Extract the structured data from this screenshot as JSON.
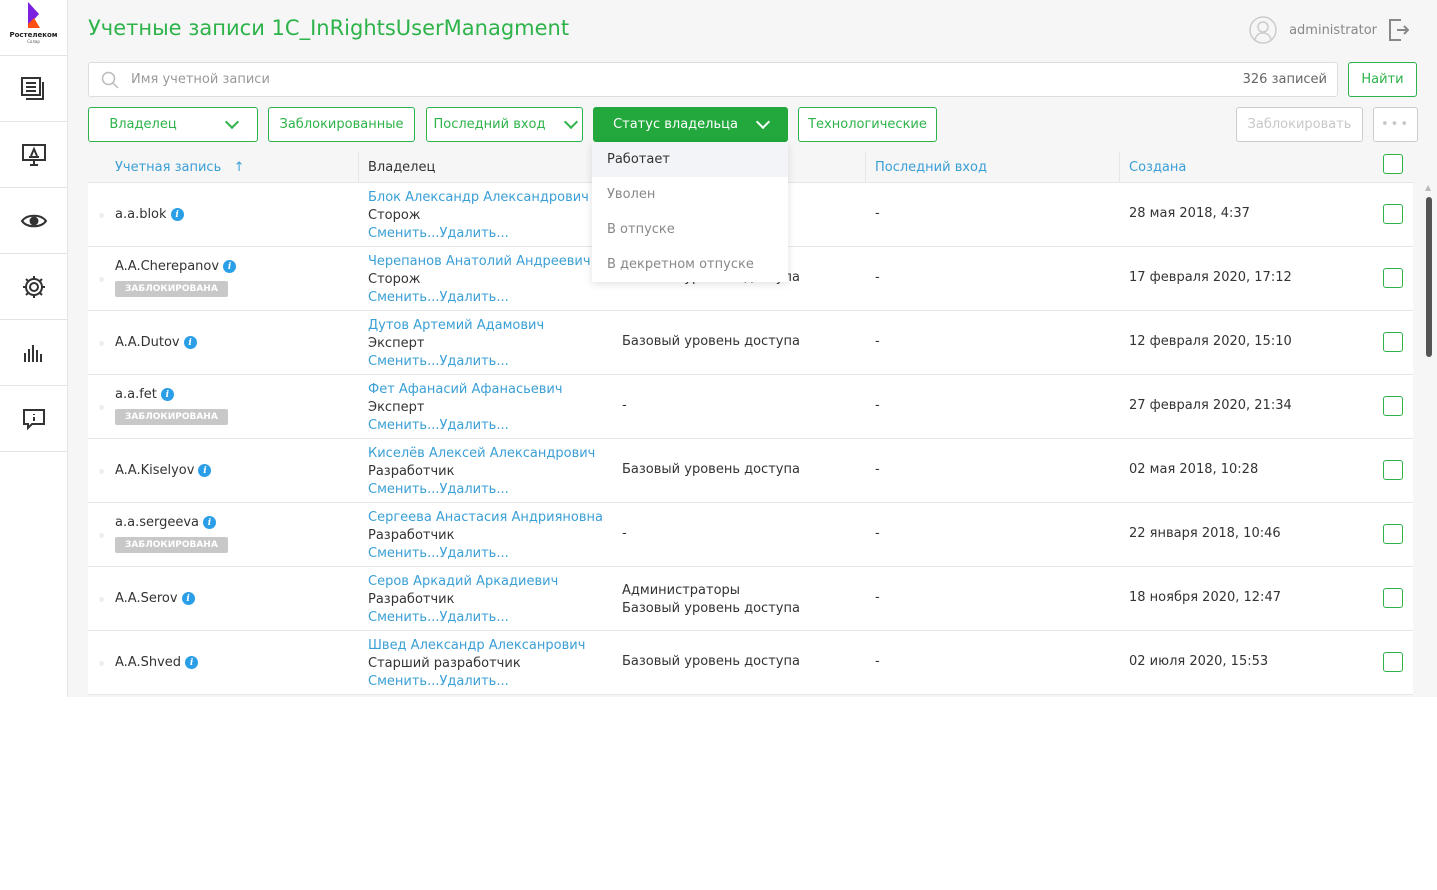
{
  "brand": {
    "name": "Ростелеком",
    "sub": "Солар"
  },
  "header": {
    "title": "Учетные записи 1C_InRightsUserManagment",
    "user": "administrator"
  },
  "search": {
    "placeholder": "Имя учетной записи",
    "count": "326 записей",
    "find": "Найти"
  },
  "filters": {
    "owner": "Владелец",
    "blocked": "Заблокированные",
    "last_login": "Последний вход",
    "owner_status": "Статус владельца",
    "technical": "Технологические",
    "block": "Заблокировать",
    "more": "•••"
  },
  "dropdown": [
    "Работает",
    "Уволен",
    "В отпуске",
    "В декретном отпуске"
  ],
  "columns": {
    "account": "Учетная запись",
    "account_sort": "↑",
    "owner": "Владелец",
    "last": "Последний вход",
    "created": "Создана"
  },
  "colors": {
    "accent": "#2db34a",
    "link": "#3a9fd6"
  },
  "rows": [
    {
      "account": "a.a.blok",
      "blocked": "",
      "owner": "Блок Александр Александрович",
      "role": "Сторож",
      "links": "Сменить...Удалить...",
      "groups": "",
      "groups2": "",
      "last": "-",
      "created": "28 мая 2018, 4:37"
    },
    {
      "account": "A.A.Cherepanov",
      "blocked": "ЗАБЛОКИРОВАНА",
      "owner": "Черепанов Анатолий Андреевич",
      "role": "Сторож",
      "links": "Сменить...Удалить...",
      "groups": "Базовый уровень доступа",
      "groups2": "",
      "last": "-",
      "created": "17 февраля 2020, 17:12"
    },
    {
      "account": "A.A.Dutov",
      "blocked": "",
      "owner": "Дутов Артемий Адамович",
      "role": "Эксперт",
      "links": "Сменить...Удалить...",
      "groups": "Базовый уровень доступа",
      "groups2": "",
      "last": "-",
      "created": "12 февраля 2020, 15:10"
    },
    {
      "account": "a.a.fet",
      "blocked": "ЗАБЛОКИРОВАНА",
      "owner": "Фет Афанасий Афанасьевич",
      "role": "Эксперт",
      "links": "Сменить...Удалить...",
      "groups": "-",
      "groups2": "",
      "last": "-",
      "created": "27 февраля 2020, 21:34"
    },
    {
      "account": "A.A.Kiselyov",
      "blocked": "",
      "owner": "Киселёв Алексей Александрович",
      "role": "Разработчик",
      "links": "Сменить...Удалить...",
      "groups": "Базовый уровень доступа",
      "groups2": "",
      "last": "-",
      "created": "02 мая 2018, 10:28"
    },
    {
      "account": "a.a.sergeeva",
      "blocked": "ЗАБЛОКИРОВАНА",
      "owner": "Сергеева Анастасия Андрияновна",
      "role": "Разработчик",
      "links": "Сменить...Удалить...",
      "groups": "-",
      "groups2": "",
      "last": "-",
      "created": "22 января 2018, 10:46"
    },
    {
      "account": "A.A.Serov",
      "blocked": "",
      "owner": "Серов Аркадий Аркадиевич",
      "role": "Разработчик",
      "links": "Сменить...Удалить...",
      "groups": "Администраторы",
      "groups2": "Базовый уровень доступа",
      "last": "-",
      "created": "18 ноября 2020, 12:47"
    },
    {
      "account": "A.A.Shved",
      "blocked": "",
      "owner": "Швед Александр Алексанрович",
      "role": "Старший разработчик",
      "links": "Сменить...Удалить...",
      "groups": "Базовый уровень доступа",
      "groups2": "",
      "last": "-",
      "created": "02 июля 2020, 15:53"
    }
  ]
}
